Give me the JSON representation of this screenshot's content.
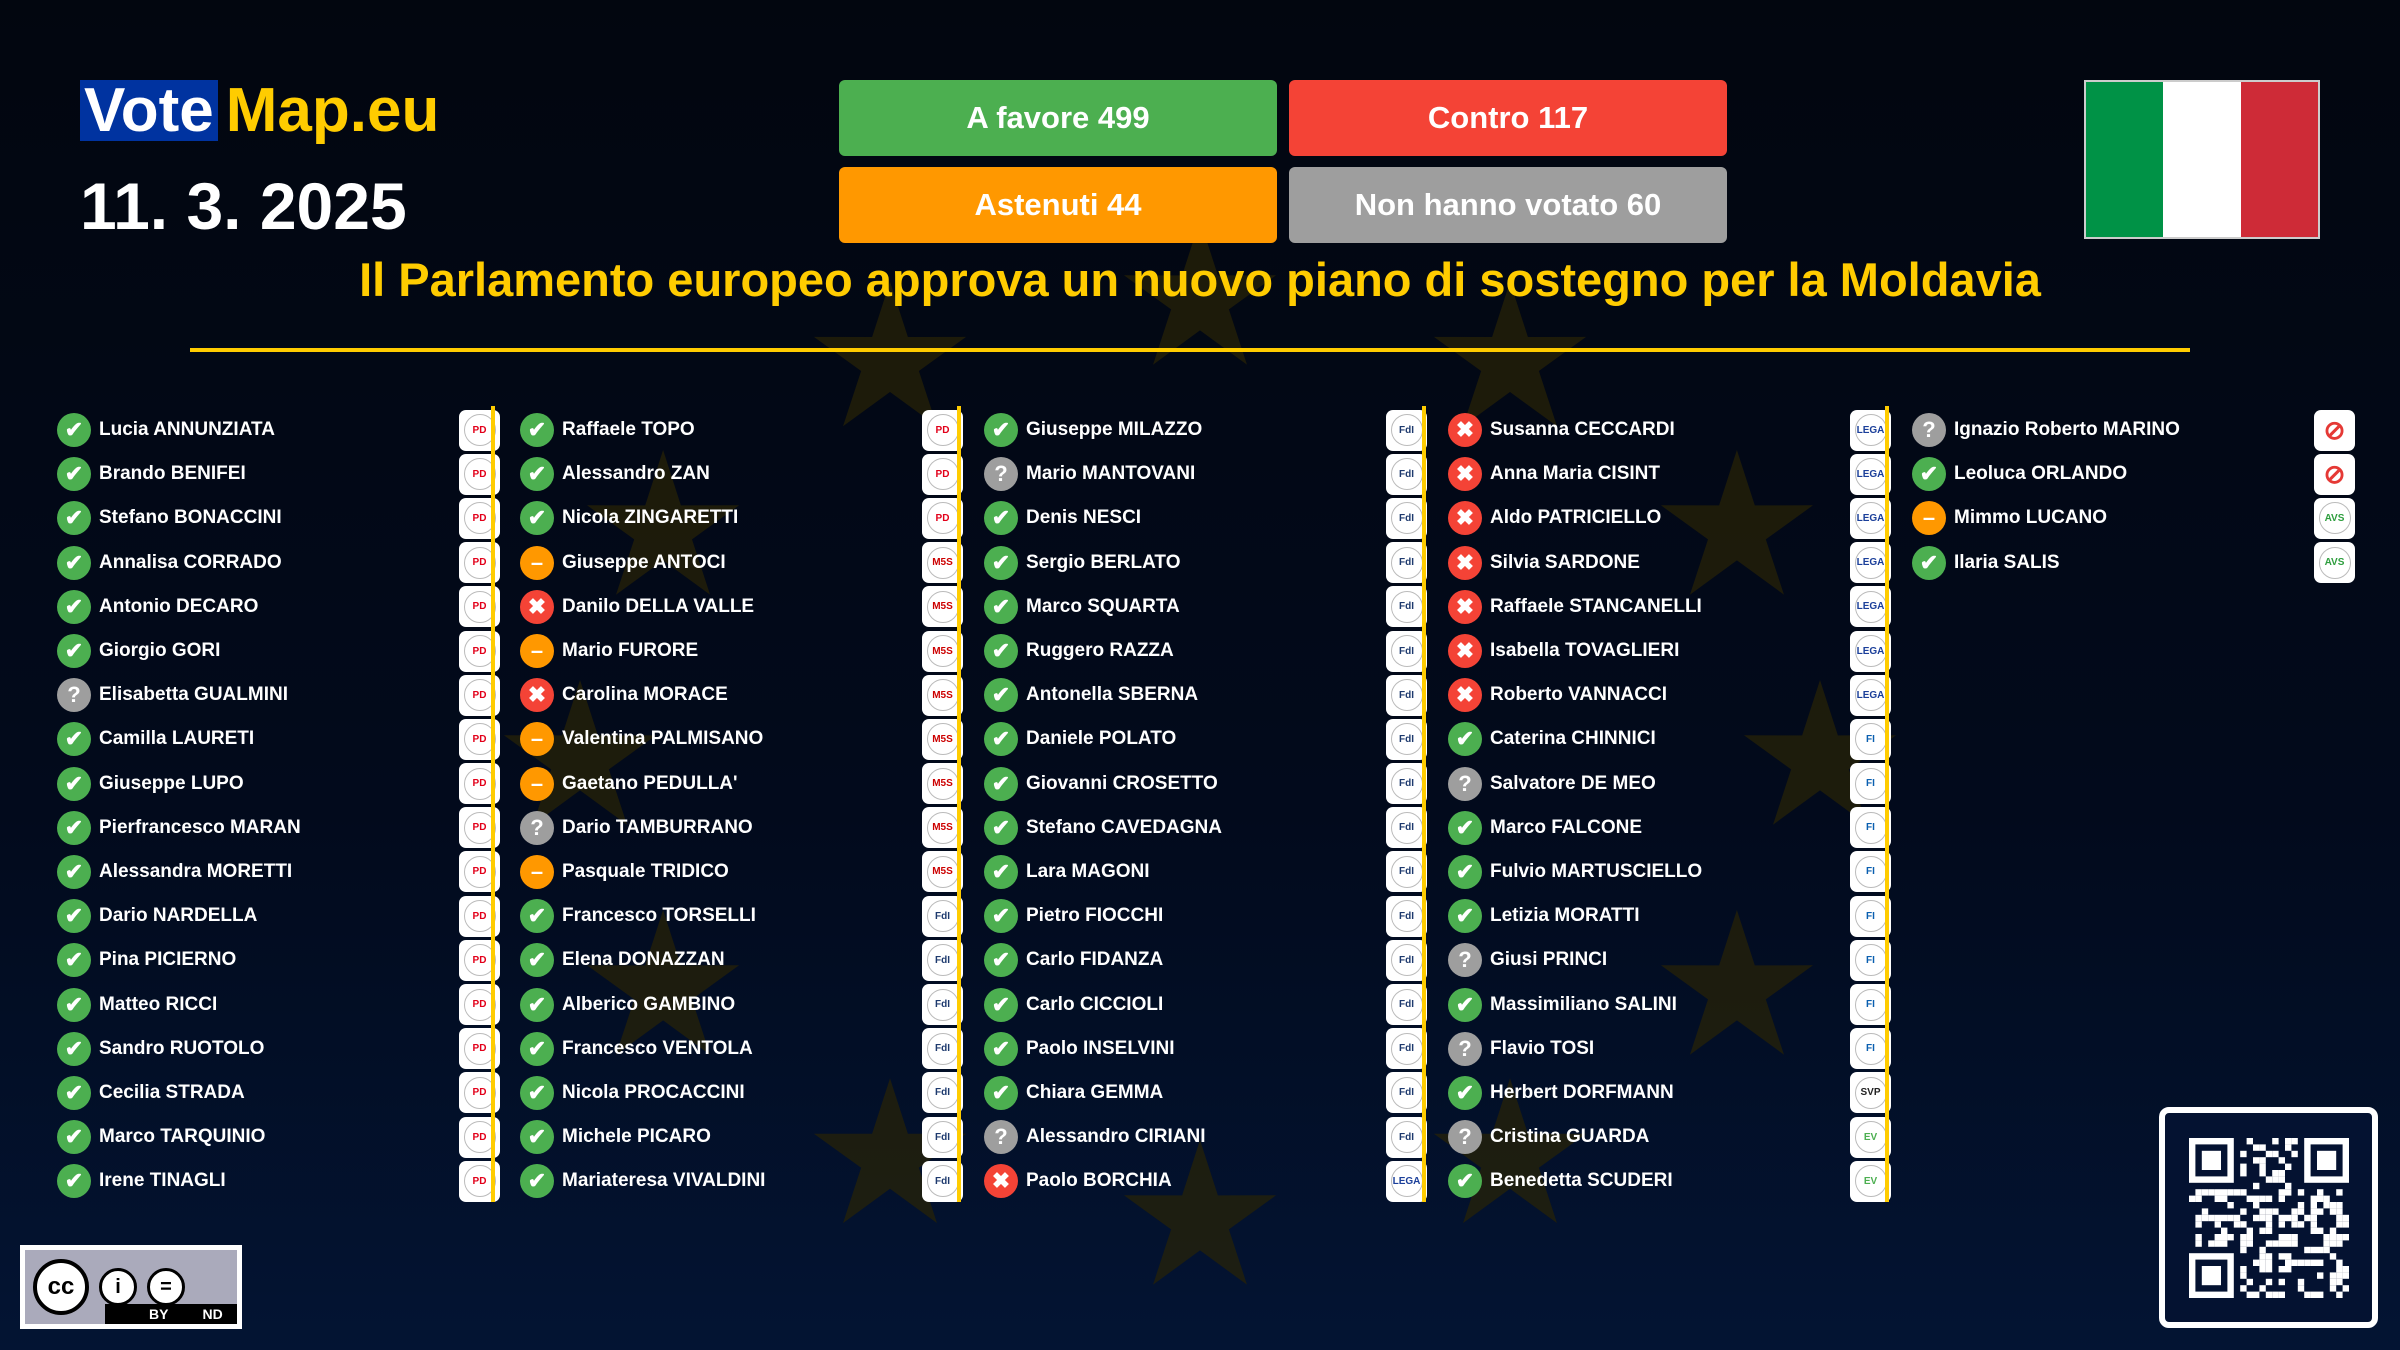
{
  "header": {
    "logo_vote": "Vote",
    "logo_map": "Map.eu",
    "date": "11. 3. 2025",
    "title": "Il Parlamento europeo approva un nuovo piano di sostegno per la Moldavia"
  },
  "totals": {
    "for": "A favore 499",
    "against": "Contro 117",
    "abstain": "Astenuti 44",
    "novote": "Non hanno votato 60"
  },
  "colors": {
    "for": "#4caf50",
    "against": "#f44336",
    "abstain": "#ff9800",
    "novote": "#9e9e9e",
    "accent": "#ffcc00"
  },
  "flag": {
    "country": "Italy",
    "colors": [
      "#009246",
      "#ffffff",
      "#ce2b37"
    ]
  },
  "parties": {
    "PD": {
      "label": "PD",
      "fg": "#e2001a"
    },
    "M5S": {
      "label": "M5S",
      "fg": "#c00"
    },
    "FdI": {
      "label": "FdI",
      "fg": "#1e3a6e"
    },
    "Lega": {
      "label": "LEGA",
      "fg": "#1b3f9a"
    },
    "FI": {
      "label": "FI",
      "fg": "#0a5fb0"
    },
    "SVP": {
      "label": "SVP",
      "fg": "#222"
    },
    "EV": {
      "label": "EV",
      "fg": "#4caf50"
    },
    "AVS": {
      "label": "AVS",
      "fg": "#2e9e3e"
    },
    "NI": {
      "label": "⊘",
      "fg": "#e53935"
    }
  },
  "columns": [
    [
      [
        "Lucia ANNUNZIATA",
        "for",
        "PD"
      ],
      [
        "Brando BENIFEI",
        "for",
        "PD"
      ],
      [
        "Stefano BONACCINI",
        "for",
        "PD"
      ],
      [
        "Annalisa CORRADO",
        "for",
        "PD"
      ],
      [
        "Antonio DECARO",
        "for",
        "PD"
      ],
      [
        "Giorgio GORI",
        "for",
        "PD"
      ],
      [
        "Elisabetta GUALMINI",
        "novote",
        "PD"
      ],
      [
        "Camilla LAURETI",
        "for",
        "PD"
      ],
      [
        "Giuseppe LUPO",
        "for",
        "PD"
      ],
      [
        "Pierfrancesco MARAN",
        "for",
        "PD"
      ],
      [
        "Alessandra MORETTI",
        "for",
        "PD"
      ],
      [
        "Dario NARDELLA",
        "for",
        "PD"
      ],
      [
        "Pina PICIERNO",
        "for",
        "PD"
      ],
      [
        "Matteo RICCI",
        "for",
        "PD"
      ],
      [
        "Sandro RUOTOLO",
        "for",
        "PD"
      ],
      [
        "Cecilia STRADA",
        "for",
        "PD"
      ],
      [
        "Marco TARQUINIO",
        "for",
        "PD"
      ],
      [
        "Irene TINAGLI",
        "for",
        "PD"
      ]
    ],
    [
      [
        "Raffaele TOPO",
        "for",
        "PD"
      ],
      [
        "Alessandro ZAN",
        "for",
        "PD"
      ],
      [
        "Nicola ZINGARETTI",
        "for",
        "PD"
      ],
      [
        "Giuseppe ANTOCI",
        "abstain",
        "M5S"
      ],
      [
        "Danilo DELLA VALLE",
        "against",
        "M5S"
      ],
      [
        "Mario FURORE",
        "abstain",
        "M5S"
      ],
      [
        "Carolina MORACE",
        "against",
        "M5S"
      ],
      [
        "Valentina PALMISANO",
        "abstain",
        "M5S"
      ],
      [
        "Gaetano PEDULLA'",
        "abstain",
        "M5S"
      ],
      [
        "Dario TAMBURRANO",
        "novote",
        "M5S"
      ],
      [
        "Pasquale TRIDICO",
        "abstain",
        "M5S"
      ],
      [
        "Francesco TORSELLI",
        "for",
        "FdI"
      ],
      [
        "Elena DONAZZAN",
        "for",
        "FdI"
      ],
      [
        "Alberico GAMBINO",
        "for",
        "FdI"
      ],
      [
        "Francesco VENTOLA",
        "for",
        "FdI"
      ],
      [
        "Nicola PROCACCINI",
        "for",
        "FdI"
      ],
      [
        "Michele PICARO",
        "for",
        "FdI"
      ],
      [
        "Mariateresa VIVALDINI",
        "for",
        "FdI"
      ]
    ],
    [
      [
        "Giuseppe MILAZZO",
        "for",
        "FdI"
      ],
      [
        "Mario MANTOVANI",
        "novote",
        "FdI"
      ],
      [
        "Denis NESCI",
        "for",
        "FdI"
      ],
      [
        "Sergio BERLATO",
        "for",
        "FdI"
      ],
      [
        "Marco SQUARTA",
        "for",
        "FdI"
      ],
      [
        "Ruggero RAZZA",
        "for",
        "FdI"
      ],
      [
        "Antonella SBERNA",
        "for",
        "FdI"
      ],
      [
        "Daniele POLATO",
        "for",
        "FdI"
      ],
      [
        "Giovanni CROSETTO",
        "for",
        "FdI"
      ],
      [
        "Stefano CAVEDAGNA",
        "for",
        "FdI"
      ],
      [
        "Lara MAGONI",
        "for",
        "FdI"
      ],
      [
        "Pietro FIOCCHI",
        "for",
        "FdI"
      ],
      [
        "Carlo FIDANZA",
        "for",
        "FdI"
      ],
      [
        "Carlo CICCIOLI",
        "for",
        "FdI"
      ],
      [
        "Paolo INSELVINI",
        "for",
        "FdI"
      ],
      [
        "Chiara GEMMA",
        "for",
        "FdI"
      ],
      [
        "Alessandro CIRIANI",
        "novote",
        "FdI"
      ],
      [
        "Paolo BORCHIA",
        "against",
        "Lega"
      ]
    ],
    [
      [
        "Susanna CECCARDI",
        "against",
        "Lega"
      ],
      [
        "Anna Maria CISINT",
        "against",
        "Lega"
      ],
      [
        "Aldo PATRICIELLO",
        "against",
        "Lega"
      ],
      [
        "Silvia SARDONE",
        "against",
        "Lega"
      ],
      [
        "Raffaele STANCANELLI",
        "against",
        "Lega"
      ],
      [
        "Isabella TOVAGLIERI",
        "against",
        "Lega"
      ],
      [
        "Roberto VANNACCI",
        "against",
        "Lega"
      ],
      [
        "Caterina CHINNICI",
        "for",
        "FI"
      ],
      [
        "Salvatore DE MEO",
        "novote",
        "FI"
      ],
      [
        "Marco FALCONE",
        "for",
        "FI"
      ],
      [
        "Fulvio MARTUSCIELLO",
        "for",
        "FI"
      ],
      [
        "Letizia MORATTI",
        "for",
        "FI"
      ],
      [
        "Giusi PRINCI",
        "novote",
        "FI"
      ],
      [
        "Massimiliano SALINI",
        "for",
        "FI"
      ],
      [
        "Flavio TOSI",
        "novote",
        "FI"
      ],
      [
        "Herbert DORFMANN",
        "for",
        "SVP"
      ],
      [
        "Cristina GUARDA",
        "novote",
        "EV"
      ],
      [
        "Benedetta SCUDERI",
        "for",
        "EV"
      ]
    ],
    [
      [
        "Ignazio Roberto MARINO",
        "novote",
        "NI"
      ],
      [
        "Leoluca ORLANDO",
        "for",
        "NI"
      ],
      [
        "Mimmo LUCANO",
        "abstain",
        "AVS"
      ],
      [
        "Ilaria SALIS",
        "for",
        "AVS"
      ]
    ]
  ],
  "license": {
    "cc": "cc",
    "by": "BY",
    "nd": "ND"
  }
}
